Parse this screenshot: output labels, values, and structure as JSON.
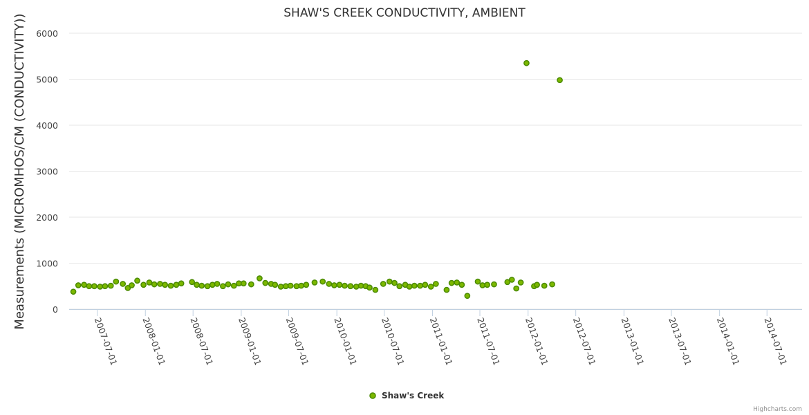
{
  "chart_data": {
    "type": "scatter",
    "title": "SHAW'S CREEK CONDUCTIVITY, AMBIENT",
    "xlabel": "",
    "ylabel": "Measurements (MICROMHOS/CM (CONDUCTIVITY))",
    "ylim": [
      0,
      6000
    ],
    "yticks": [
      0,
      1000,
      2000,
      3000,
      4000,
      5000,
      6000
    ],
    "xlim": [
      "2007-03-16",
      "2014-11-12"
    ],
    "xticks": [
      "2007-07-01",
      "2008-01-01",
      "2008-07-01",
      "2009-01-01",
      "2009-07-01",
      "2010-01-01",
      "2010-07-01",
      "2011-01-01",
      "2011-07-01",
      "2012-01-01",
      "2012-07-01",
      "2013-01-01",
      "2013-07-01",
      "2014-01-01",
      "2014-07-01"
    ],
    "grid": true,
    "legend_position": "bottom-center",
    "colors": {
      "marker_fill": "#7cb800",
      "marker_stroke": "#4a8a00",
      "grid": "#e6e6e6",
      "axis": "#c0d0e0"
    },
    "series": [
      {
        "name": "Shaw's Creek",
        "points": [
          [
            "2007-04-01",
            380
          ],
          [
            "2007-04-20",
            520
          ],
          [
            "2007-05-12",
            530
          ],
          [
            "2007-05-31",
            500
          ],
          [
            "2007-06-20",
            500
          ],
          [
            "2007-07-12",
            490
          ],
          [
            "2007-07-31",
            500
          ],
          [
            "2007-08-22",
            510
          ],
          [
            "2007-09-11",
            600
          ],
          [
            "2007-10-07",
            550
          ],
          [
            "2007-10-26",
            460
          ],
          [
            "2007-11-10",
            520
          ],
          [
            "2007-12-01",
            620
          ],
          [
            "2007-12-25",
            530
          ],
          [
            "2008-01-16",
            580
          ],
          [
            "2008-02-04",
            540
          ],
          [
            "2008-02-26",
            550
          ],
          [
            "2008-03-16",
            530
          ],
          [
            "2008-04-07",
            510
          ],
          [
            "2008-04-28",
            530
          ],
          [
            "2008-05-17",
            560
          ],
          [
            "2008-06-27",
            590
          ],
          [
            "2008-07-15",
            530
          ],
          [
            "2008-08-03",
            510
          ],
          [
            "2008-08-25",
            500
          ],
          [
            "2008-09-13",
            530
          ],
          [
            "2008-10-01",
            550
          ],
          [
            "2008-10-23",
            500
          ],
          [
            "2008-11-12",
            540
          ],
          [
            "2008-12-04",
            510
          ],
          [
            "2008-12-23",
            560
          ],
          [
            "2009-01-10",
            560
          ],
          [
            "2009-02-08",
            540
          ],
          [
            "2009-03-12",
            670
          ],
          [
            "2009-04-03",
            570
          ],
          [
            "2009-04-25",
            550
          ],
          [
            "2009-05-10",
            530
          ],
          [
            "2009-06-01",
            490
          ],
          [
            "2009-06-20",
            500
          ],
          [
            "2009-07-08",
            510
          ],
          [
            "2009-07-31",
            500
          ],
          [
            "2009-08-18",
            510
          ],
          [
            "2009-09-06",
            530
          ],
          [
            "2009-10-08",
            580
          ],
          [
            "2009-11-08",
            600
          ],
          [
            "2009-12-02",
            550
          ],
          [
            "2009-12-22",
            520
          ],
          [
            "2010-01-11",
            530
          ],
          [
            "2010-01-31",
            510
          ],
          [
            "2010-02-22",
            500
          ],
          [
            "2010-03-16",
            490
          ],
          [
            "2010-04-03",
            510
          ],
          [
            "2010-04-21",
            500
          ],
          [
            "2010-05-06",
            470
          ],
          [
            "2010-05-28",
            420
          ],
          [
            "2010-06-27",
            550
          ],
          [
            "2010-07-21",
            600
          ],
          [
            "2010-08-09",
            570
          ],
          [
            "2010-08-28",
            500
          ],
          [
            "2010-09-19",
            530
          ],
          [
            "2010-10-05",
            490
          ],
          [
            "2010-10-24",
            510
          ],
          [
            "2010-11-15",
            510
          ],
          [
            "2010-12-04",
            530
          ],
          [
            "2010-12-26",
            490
          ],
          [
            "2011-01-14",
            550
          ],
          [
            "2011-02-24",
            420
          ],
          [
            "2011-03-15",
            570
          ],
          [
            "2011-04-04",
            580
          ],
          [
            "2011-04-23",
            530
          ],
          [
            "2011-05-14",
            290
          ],
          [
            "2011-06-23",
            600
          ],
          [
            "2011-07-11",
            520
          ],
          [
            "2011-07-29",
            530
          ],
          [
            "2011-08-24",
            540
          ],
          [
            "2011-10-14",
            590
          ],
          [
            "2011-10-31",
            640
          ],
          [
            "2011-11-17",
            450
          ],
          [
            "2011-12-04",
            580
          ],
          [
            "2011-12-26",
            5350
          ],
          [
            "2012-01-24",
            500
          ],
          [
            "2012-02-04",
            530
          ],
          [
            "2012-03-03",
            510
          ],
          [
            "2012-04-02",
            540
          ],
          [
            "2012-05-01",
            4980
          ]
        ]
      }
    ]
  },
  "credits": "Highcharts.com"
}
